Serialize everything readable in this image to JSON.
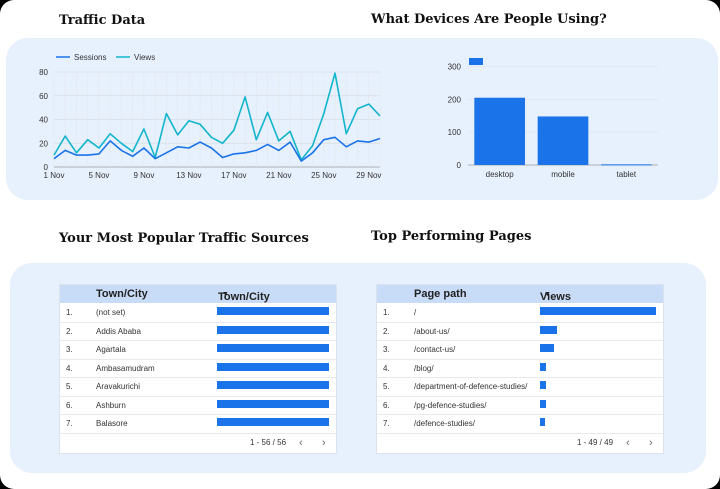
{
  "headings": {
    "traffic": "Traffic Data",
    "devices": "What Devices Are People Using?",
    "sources": "Your Most Popular Traffic Sources",
    "pages": "Top Performing Pages"
  },
  "traffic_chart": {
    "type": "line",
    "legend": [
      "Sessions",
      "Views"
    ],
    "x_ticks": [
      "1 Nov",
      "5 Nov",
      "9 Nov",
      "13 Nov",
      "17 Nov",
      "21 Nov",
      "25 Nov",
      "29 Nov"
    ],
    "y_ticks": [
      "0",
      "20",
      "40",
      "60",
      "80"
    ],
    "ylim": [
      0,
      80
    ],
    "days": 30,
    "colors": {
      "sessions": "#1a73e8",
      "views": "#12b5cb"
    },
    "sessions": [
      7,
      14,
      10,
      10,
      11,
      22,
      14,
      9,
      16,
      7,
      12,
      17,
      16,
      21,
      16,
      8,
      11,
      12,
      14,
      19,
      14,
      21,
      5,
      12,
      23,
      25,
      17,
      22,
      21,
      24
    ],
    "views": [
      10,
      26,
      12,
      23,
      16,
      28,
      20,
      13,
      32,
      8,
      45,
      27,
      39,
      36,
      25,
      20,
      31,
      59,
      23,
      46,
      22,
      30,
      6,
      18,
      45,
      79,
      28,
      49,
      53,
      43
    ]
  },
  "device_chart": {
    "type": "bar",
    "categories": [
      "desktop",
      "mobile",
      "tablet"
    ],
    "values": [
      205,
      148,
      2
    ],
    "y_ticks": [
      "0",
      "100",
      "200",
      "300"
    ],
    "ylim": [
      0,
      320
    ],
    "color": "#1a73e8"
  },
  "sources_table": {
    "col1": "Town/City",
    "col2": "Town/City",
    "rows": [
      {
        "num": "1.",
        "label": "(not set)",
        "value": 1
      },
      {
        "num": "2.",
        "label": "Addis Ababa",
        "value": 1
      },
      {
        "num": "3.",
        "label": "Agartala",
        "value": 1
      },
      {
        "num": "4.",
        "label": "Ambasamudram",
        "value": 1
      },
      {
        "num": "5.",
        "label": "Aravakurichi",
        "value": 1
      },
      {
        "num": "6.",
        "label": "Ashburn",
        "value": 1
      },
      {
        "num": "7.",
        "label": "Balasore",
        "value": 1
      }
    ],
    "pager": "1 - 56 / 56"
  },
  "pages_table": {
    "col1": "Page path",
    "col2": "Views",
    "rows": [
      {
        "num": "1.",
        "label": "/",
        "value": 1.0
      },
      {
        "num": "2.",
        "label": "/about-us/",
        "value": 0.15
      },
      {
        "num": "3.",
        "label": "/contact-us/",
        "value": 0.12
      },
      {
        "num": "4.",
        "label": "/blog/",
        "value": 0.05
      },
      {
        "num": "5.",
        "label": "/department-of-defence-studies/",
        "value": 0.05
      },
      {
        "num": "6.",
        "label": "/pg-defence-studies/",
        "value": 0.05
      },
      {
        "num": "7.",
        "label": "/defence-studies/",
        "value": 0.04
      }
    ],
    "pager": "1 - 49 / 49"
  }
}
